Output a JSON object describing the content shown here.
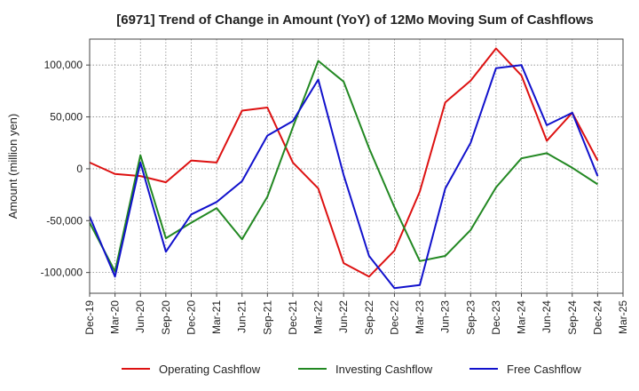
{
  "chart_data": {
    "type": "line",
    "title": "[6971]  Trend of Change in Amount (YoY) of 12Mo Moving Sum of Cashflows",
    "xlabel": "",
    "ylabel": "Amount (million yen)",
    "ylim": [
      -120000,
      125000
    ],
    "yticks": [
      -100000,
      -50000,
      0,
      50000,
      100000
    ],
    "ytick_labels": [
      "-100,000",
      "-50,000",
      "0",
      "50,000",
      "100,000"
    ],
    "grid": true,
    "legend_position": "bottom",
    "categories": [
      "Dec-19",
      "Mar-20",
      "Jun-20",
      "Sep-20",
      "Dec-20",
      "Mar-21",
      "Jun-21",
      "Sep-21",
      "Dec-21",
      "Mar-22",
      "Jun-22",
      "Sep-22",
      "Dec-22",
      "Mar-23",
      "Jun-23",
      "Sep-23",
      "Dec-23",
      "Mar-24",
      "Jun-24",
      "Sep-24",
      "Dec-24",
      "Mar-25"
    ],
    "series": [
      {
        "name": "Operating Cashflow",
        "color": "#dd1111",
        "values": [
          6000,
          -5000,
          -7000,
          -13000,
          8000,
          6000,
          56000,
          59000,
          6000,
          -19000,
          -91000,
          -104000,
          -79000,
          -22000,
          64000,
          85000,
          116000,
          90000,
          27000,
          54000,
          8000,
          null
        ]
      },
      {
        "name": "Investing Cashflow",
        "color": "#228822",
        "values": [
          -52000,
          -99000,
          13000,
          -67000,
          -52000,
          -38000,
          -68000,
          -27000,
          40000,
          104000,
          84000,
          20000,
          -37000,
          -89000,
          -84000,
          -59000,
          -18000,
          10000,
          15000,
          1000,
          -15000,
          null
        ]
      },
      {
        "name": "Free Cashflow",
        "color": "#1111cc",
        "values": [
          -46000,
          -104000,
          6000,
          -80000,
          -44000,
          -32000,
          -12000,
          32000,
          46000,
          86000,
          -6000,
          -84000,
          -115000,
          -112000,
          -19000,
          25000,
          97000,
          100000,
          42000,
          54000,
          -7000,
          null
        ]
      }
    ]
  }
}
